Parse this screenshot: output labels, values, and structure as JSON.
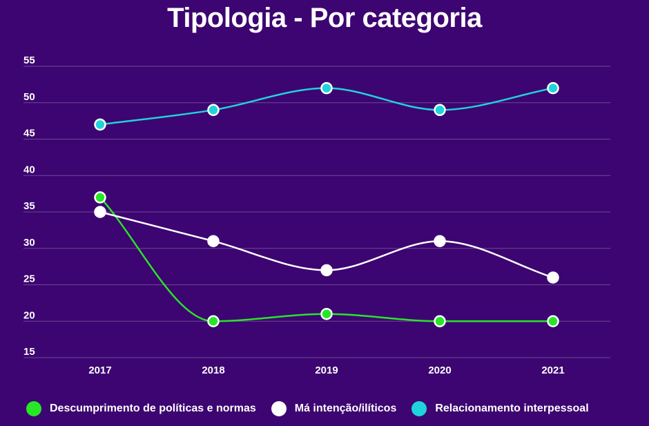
{
  "chart_data": {
    "type": "line",
    "title": "Tipologia - Por categoria",
    "xlabel": "",
    "ylabel": "",
    "categories": [
      "2017",
      "2018",
      "2019",
      "2020",
      "2021"
    ],
    "ylim": [
      15,
      55
    ],
    "yticks": [
      15,
      20,
      25,
      30,
      35,
      40,
      45,
      50,
      55
    ],
    "grid": true,
    "legend": "bottom",
    "series": [
      {
        "name": "Descumprimento de políticas e normas",
        "color": "#27e627",
        "values": [
          37,
          20,
          21,
          20,
          20
        ]
      },
      {
        "name": "Má intenção/ilíticos",
        "color": "#ffffff",
        "values": [
          35,
          31,
          27,
          31,
          26
        ]
      },
      {
        "name": "Relacionamento interpessoal",
        "color": "#1fd3dc",
        "values": [
          47,
          49,
          52,
          49,
          52
        ]
      }
    ]
  }
}
